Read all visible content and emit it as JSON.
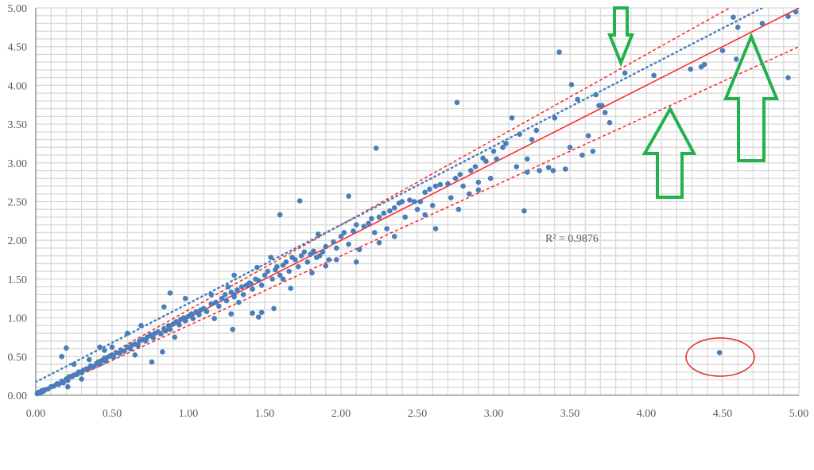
{
  "chart_data": {
    "type": "scatter",
    "title": "",
    "xlabel": "",
    "ylabel": "",
    "xlim": [
      0,
      5
    ],
    "ylim": [
      0,
      5
    ],
    "grid": true,
    "grid_step": 0.1,
    "x_ticks": [
      "0.00",
      "0.50",
      "1.00",
      "1.50",
      "2.00",
      "2.50",
      "3.00",
      "3.50",
      "4.00",
      "4.50",
      "5.00"
    ],
    "y_ticks": [
      "0.00",
      "0.50",
      "1.00",
      "1.50",
      "2.00",
      "2.50",
      "3.00",
      "3.50",
      "4.00",
      "4.50",
      "5.00"
    ],
    "annotation_r2": "R² = 0.9876",
    "colors": {
      "points": "#4a7ebb",
      "identity": "#ff2020",
      "trend": "#4a7ebb",
      "arrows": "#22b14c",
      "grid": "#d9d9d9",
      "axis": "#8c8c8c"
    },
    "lines": [
      {
        "name": "identity-line",
        "style": "solid",
        "slope": 1.0,
        "intercept": 0.0
      },
      {
        "name": "upper-bound-line",
        "style": "dashed",
        "slope": 1.1,
        "intercept": 0.0
      },
      {
        "name": "lower-bound-line",
        "style": "dashed",
        "slope": 0.9,
        "intercept": 0.0
      },
      {
        "name": "trendline",
        "style": "dotted",
        "slope": 1.015,
        "intercept": 0.17
      }
    ],
    "highlighted_outlier": [
      4.48,
      0.55
    ],
    "points": [
      [
        0.01,
        0.02
      ],
      [
        0.02,
        0.04
      ],
      [
        0.03,
        0.03
      ],
      [
        0.04,
        0.06
      ],
      [
        0.05,
        0.05
      ],
      [
        0.06,
        0.07
      ],
      [
        0.08,
        0.08
      ],
      [
        0.1,
        0.11
      ],
      [
        0.12,
        0.12
      ],
      [
        0.14,
        0.15
      ],
      [
        0.15,
        0.14
      ],
      [
        0.17,
        0.18
      ],
      [
        0.18,
        0.16
      ],
      [
        0.2,
        0.21
      ],
      [
        0.21,
        0.19
      ],
      [
        0.22,
        0.24
      ],
      [
        0.24,
        0.25
      ],
      [
        0.25,
        0.26
      ],
      [
        0.27,
        0.27
      ],
      [
        0.28,
        0.3
      ],
      [
        0.3,
        0.29
      ],
      [
        0.31,
        0.32
      ],
      [
        0.33,
        0.34
      ],
      [
        0.35,
        0.35
      ],
      [
        0.36,
        0.38
      ],
      [
        0.38,
        0.37
      ],
      [
        0.4,
        0.41
      ],
      [
        0.41,
        0.43
      ],
      [
        0.42,
        0.4
      ],
      [
        0.44,
        0.45
      ],
      [
        0.45,
        0.48
      ],
      [
        0.46,
        0.44
      ],
      [
        0.48,
        0.5
      ],
      [
        0.5,
        0.52
      ],
      [
        0.51,
        0.49
      ],
      [
        0.53,
        0.55
      ],
      [
        0.55,
        0.54
      ],
      [
        0.56,
        0.58
      ],
      [
        0.58,
        0.57
      ],
      [
        0.6,
        0.62
      ],
      [
        0.62,
        0.6
      ],
      [
        0.63,
        0.65
      ],
      [
        0.65,
        0.66
      ],
      [
        0.67,
        0.64
      ],
      [
        0.68,
        0.7
      ],
      [
        0.7,
        0.72
      ],
      [
        0.72,
        0.7
      ],
      [
        0.73,
        0.75
      ],
      [
        0.75,
        0.78
      ],
      [
        0.77,
        0.74
      ],
      [
        0.78,
        0.8
      ],
      [
        0.8,
        0.82
      ],
      [
        0.82,
        0.79
      ],
      [
        0.84,
        0.86
      ],
      [
        0.85,
        0.83
      ],
      [
        0.87,
        0.9
      ],
      [
        0.88,
        0.85
      ],
      [
        0.9,
        0.92
      ],
      [
        0.92,
        0.95
      ],
      [
        0.94,
        0.91
      ],
      [
        0.95,
        0.98
      ],
      [
        0.97,
        1.0
      ],
      [
        0.98,
        0.96
      ],
      [
        1.0,
        1.02
      ],
      [
        1.02,
        1.05
      ],
      [
        1.03,
        0.99
      ],
      [
        1.05,
        1.08
      ],
      [
        1.07,
        1.04
      ],
      [
        1.08,
        1.1
      ],
      [
        1.1,
        1.12
      ],
      [
        1.12,
        1.08
      ],
      [
        0.2,
        0.61
      ],
      [
        0.17,
        0.5
      ],
      [
        0.21,
        0.11
      ],
      [
        0.3,
        0.21
      ],
      [
        0.42,
        0.62
      ],
      [
        0.25,
        0.4
      ],
      [
        0.76,
        0.43
      ],
      [
        0.83,
        0.56
      ],
      [
        0.88,
        1.32
      ],
      [
        0.91,
        0.75
      ],
      [
        0.69,
        0.9
      ],
      [
        0.6,
        0.8
      ],
      [
        0.65,
        0.52
      ],
      [
        1.29,
        0.85
      ],
      [
        1.46,
        1.01
      ],
      [
        1.48,
        1.07
      ],
      [
        1.17,
        0.99
      ],
      [
        0.98,
        1.25
      ],
      [
        0.84,
        1.14
      ],
      [
        0.5,
        0.62
      ],
      [
        0.45,
        0.58
      ],
      [
        0.35,
        0.46
      ],
      [
        1.15,
        1.18
      ],
      [
        1.18,
        1.2
      ],
      [
        1.2,
        1.15
      ],
      [
        1.22,
        1.25
      ],
      [
        1.24,
        1.3
      ],
      [
        1.25,
        1.22
      ],
      [
        1.28,
        1.33
      ],
      [
        1.3,
        1.27
      ],
      [
        1.32,
        1.36
      ],
      [
        1.35,
        1.4
      ],
      [
        1.36,
        1.3
      ],
      [
        1.38,
        1.42
      ],
      [
        1.4,
        1.45
      ],
      [
        1.42,
        1.37
      ],
      [
        1.44,
        1.5
      ],
      [
        1.46,
        1.48
      ],
      [
        1.48,
        1.42
      ],
      [
        1.5,
        1.55
      ],
      [
        1.52,
        1.6
      ],
      [
        1.55,
        1.5
      ],
      [
        1.57,
        1.62
      ],
      [
        1.58,
        1.66
      ],
      [
        1.6,
        1.55
      ],
      [
        1.62,
        1.68
      ],
      [
        1.64,
        1.72
      ],
      [
        1.66,
        1.6
      ],
      [
        1.68,
        1.78
      ],
      [
        1.7,
        1.75
      ],
      [
        1.72,
        1.66
      ],
      [
        1.74,
        1.8
      ],
      [
        1.76,
        1.85
      ],
      [
        1.78,
        1.72
      ],
      [
        1.8,
        1.82
      ],
      [
        1.82,
        1.86
      ],
      [
        1.84,
        1.78
      ],
      [
        1.86,
        1.8
      ],
      [
        1.88,
        1.85
      ],
      [
        1.9,
        1.92
      ],
      [
        1.92,
        1.75
      ],
      [
        1.95,
        1.98
      ],
      [
        1.97,
        1.9
      ],
      [
        2.0,
        2.05
      ],
      [
        1.3,
        1.3
      ],
      [
        1.26,
        1.4
      ],
      [
        1.33,
        1.2
      ],
      [
        1.56,
        1.12
      ],
      [
        1.62,
        1.5
      ],
      [
        1.42,
        1.06
      ],
      [
        1.15,
        1.3
      ],
      [
        1.45,
        1.65
      ],
      [
        1.3,
        1.55
      ],
      [
        1.6,
        2.33
      ],
      [
        1.73,
        2.51
      ],
      [
        1.41,
        1.44
      ],
      [
        1.28,
        1.05
      ],
      [
        1.81,
        1.58
      ],
      [
        1.67,
        1.38
      ],
      [
        1.54,
        1.78
      ],
      [
        1.85,
        2.08
      ],
      [
        1.9,
        1.67
      ],
      [
        1.97,
        1.75
      ],
      [
        2.02,
        2.1
      ],
      [
        2.05,
        1.95
      ],
      [
        2.08,
        2.12
      ],
      [
        2.1,
        2.2
      ],
      [
        2.12,
        1.88
      ],
      [
        2.15,
        2.18
      ],
      [
        2.18,
        2.22
      ],
      [
        2.2,
        2.28
      ],
      [
        2.22,
        2.1
      ],
      [
        2.25,
        2.3
      ],
      [
        2.28,
        2.35
      ],
      [
        2.3,
        2.15
      ],
      [
        2.32,
        2.38
      ],
      [
        2.35,
        2.42
      ],
      [
        2.38,
        2.48
      ],
      [
        2.4,
        2.5
      ],
      [
        2.42,
        2.3
      ],
      [
        2.45,
        2.52
      ],
      [
        2.48,
        2.5
      ],
      [
        2.5,
        2.4
      ],
      [
        2.52,
        2.5
      ],
      [
        2.55,
        2.62
      ],
      [
        2.58,
        2.66
      ],
      [
        2.6,
        2.45
      ],
      [
        2.62,
        2.7
      ],
      [
        2.65,
        2.72
      ],
      [
        2.7,
        2.73
      ],
      [
        2.72,
        2.55
      ],
      [
        2.75,
        2.8
      ],
      [
        2.78,
        2.85
      ],
      [
        2.8,
        2.7
      ],
      [
        2.85,
        2.9
      ],
      [
        2.88,
        2.95
      ],
      [
        2.9,
        2.75
      ],
      [
        2.95,
        3.02
      ],
      [
        2.98,
        2.8
      ],
      [
        2.23,
        3.19
      ],
      [
        2.05,
        2.57
      ],
      [
        2.25,
        1.97
      ],
      [
        2.62,
        2.15
      ],
      [
        2.76,
        3.78
      ],
      [
        2.77,
        2.4
      ],
      [
        2.84,
        2.6
      ],
      [
        2.9,
        2.65
      ],
      [
        2.1,
        1.72
      ],
      [
        2.35,
        2.05
      ],
      [
        2.93,
        3.06
      ],
      [
        3.0,
        3.15
      ],
      [
        2.55,
        2.33
      ],
      [
        3.02,
        3.05
      ],
      [
        3.06,
        3.2
      ],
      [
        3.08,
        3.25
      ],
      [
        3.12,
        3.58
      ],
      [
        3.17,
        3.37
      ],
      [
        3.2,
        2.38
      ],
      [
        3.22,
        2.88
      ],
      [
        3.22,
        3.05
      ],
      [
        3.28,
        3.42
      ],
      [
        3.36,
        2.94
      ],
      [
        3.39,
        2.9
      ],
      [
        3.4,
        3.58
      ],
      [
        3.43,
        4.43
      ],
      [
        3.47,
        2.92
      ],
      [
        3.51,
        4.01
      ],
      [
        3.58,
        3.1
      ],
      [
        3.55,
        3.82
      ],
      [
        3.67,
        3.88
      ],
      [
        3.69,
        3.74
      ],
      [
        3.71,
        3.74
      ],
      [
        3.73,
        3.65
      ],
      [
        3.76,
        3.52
      ],
      [
        3.65,
        3.15
      ],
      [
        3.3,
        2.9
      ],
      [
        3.15,
        2.95
      ],
      [
        3.25,
        3.3
      ],
      [
        3.5,
        3.2
      ],
      [
        3.62,
        3.35
      ],
      [
        3.86,
        4.16
      ],
      [
        4.05,
        4.13
      ],
      [
        4.29,
        4.21
      ],
      [
        4.36,
        4.24
      ],
      [
        4.38,
        4.27
      ],
      [
        4.5,
        4.45
      ],
      [
        4.57,
        4.88
      ],
      [
        4.6,
        4.75
      ],
      [
        4.59,
        4.34
      ],
      [
        4.76,
        4.8
      ],
      [
        4.93,
        4.89
      ],
      [
        4.93,
        4.1
      ],
      [
        4.98,
        4.95
      ],
      [
        4.48,
        0.55
      ]
    ]
  }
}
